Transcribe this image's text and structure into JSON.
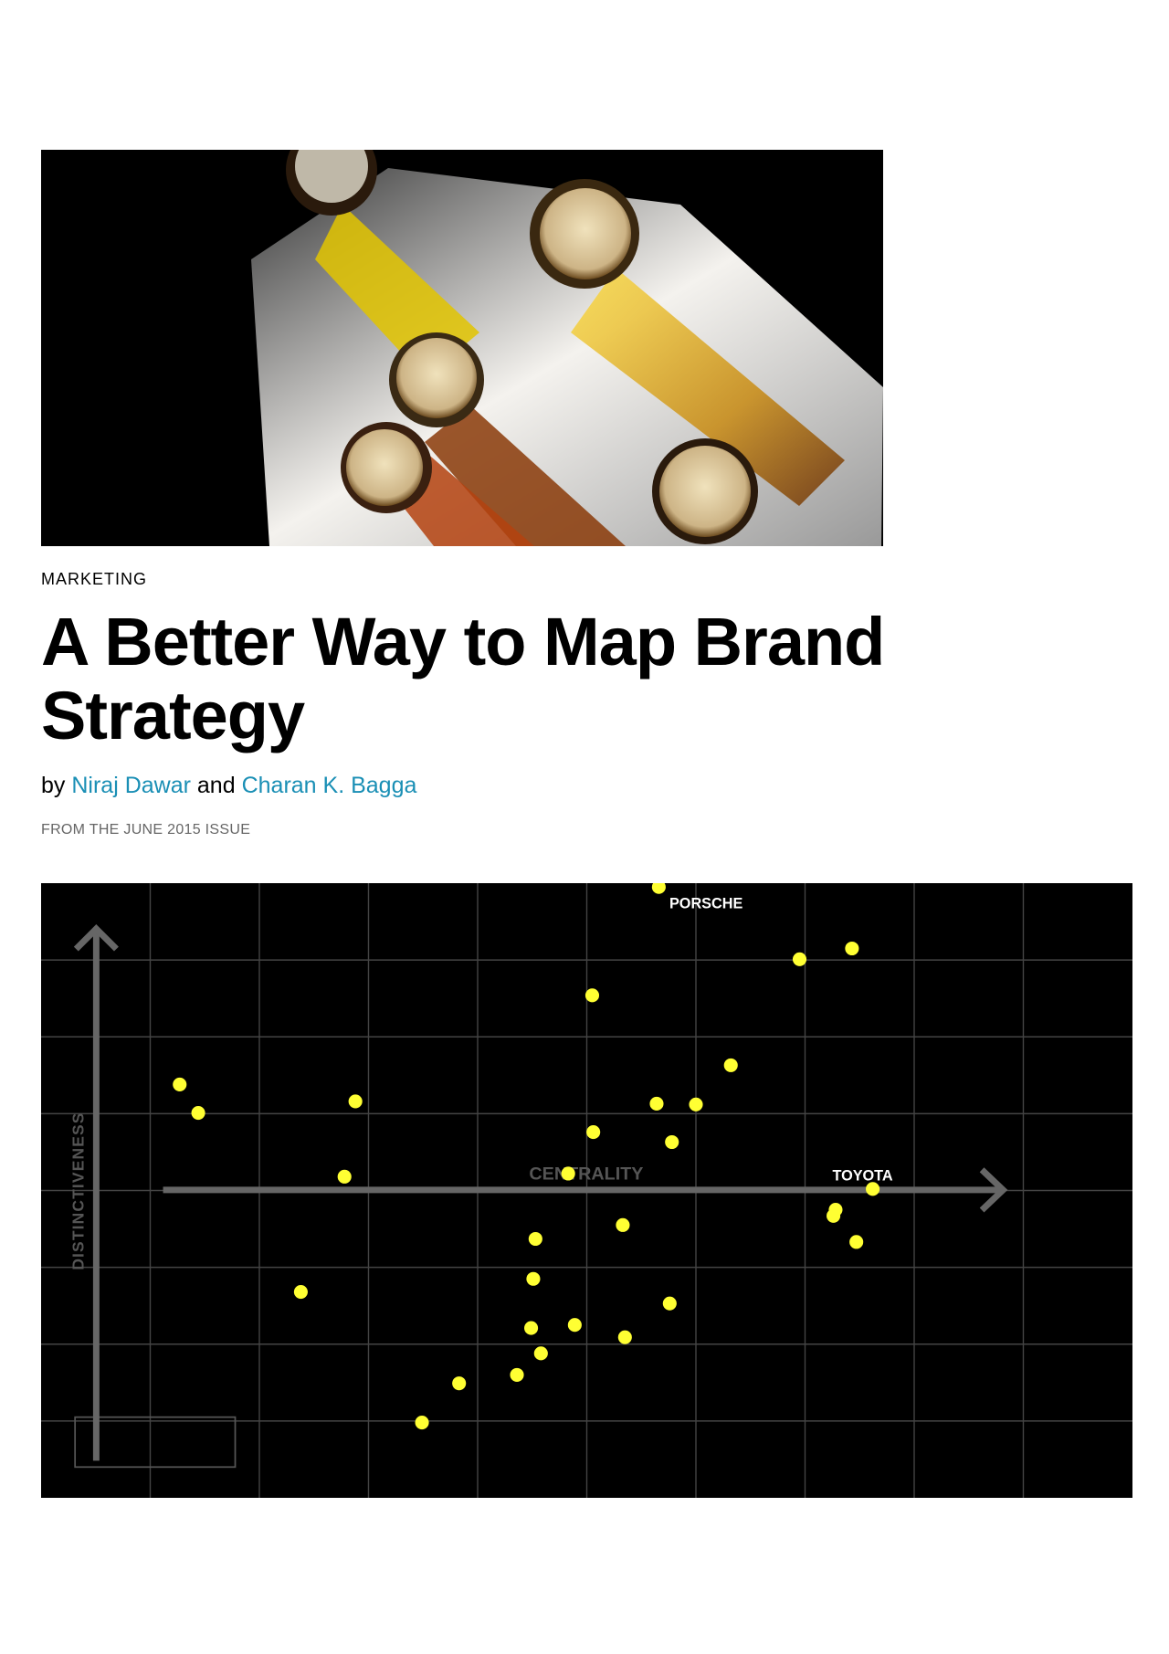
{
  "hero_image": {
    "description_icon": "beer-glasses-photo"
  },
  "article": {
    "section": "MARKETING",
    "title": "A Better Way to Map Brand Strategy",
    "by": "by",
    "author1": "Niraj Dawar",
    "and": "and",
    "author2": "Charan K. Bagga",
    "issue": "FROM THE JUNE 2015 ISSUE"
  },
  "colors": {
    "link": "#1a8fb5",
    "dot": "#ffff33",
    "axis": "#666666",
    "background": "#000000"
  },
  "chart_data": {
    "type": "scatter",
    "xlabel": "CENTRALITY",
    "ylabel": "DISTINCTIVENESS",
    "grid": true,
    "xlim": [
      0,
      10
    ],
    "ylim": [
      0,
      8
    ],
    "annotations": [
      {
        "label": "PORSCHE",
        "x": 5.66,
        "y": 7.95
      },
      {
        "label": "TOYOTA",
        "x": 7.62,
        "y": 4.02
      }
    ],
    "points": [
      [
        5.66,
        7.95
      ],
      [
        6.95,
        7.01
      ],
      [
        7.43,
        7.15
      ],
      [
        5.05,
        6.54
      ],
      [
        6.32,
        5.63
      ],
      [
        1.27,
        5.38
      ],
      [
        1.44,
        5.01
      ],
      [
        2.88,
        5.16
      ],
      [
        5.64,
        5.13
      ],
      [
        6.0,
        5.12
      ],
      [
        5.06,
        4.76
      ],
      [
        5.78,
        4.63
      ],
      [
        2.78,
        4.18
      ],
      [
        4.83,
        4.22
      ],
      [
        7.62,
        4.02
      ],
      [
        7.28,
        3.75
      ],
      [
        7.26,
        3.67
      ],
      [
        7.47,
        3.33
      ],
      [
        5.33,
        3.55
      ],
      [
        4.53,
        3.37
      ],
      [
        4.51,
        2.85
      ],
      [
        2.38,
        2.68
      ],
      [
        5.76,
        2.53
      ],
      [
        4.49,
        2.21
      ],
      [
        4.89,
        2.25
      ],
      [
        5.35,
        2.09
      ],
      [
        4.58,
        1.88
      ],
      [
        4.36,
        1.6
      ],
      [
        3.83,
        1.49
      ],
      [
        3.49,
        0.98
      ]
    ]
  }
}
